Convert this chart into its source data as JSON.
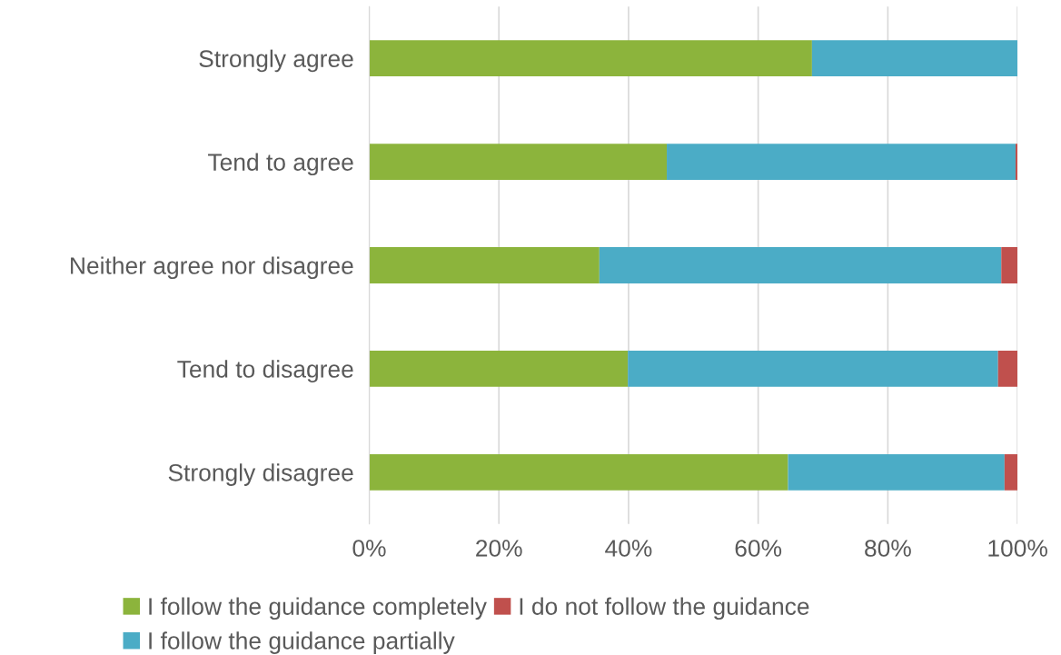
{
  "chart_data": {
    "type": "bar",
    "orientation": "horizontal",
    "stacked": true,
    "categories": [
      "Strongly agree",
      "Tend to agree",
      "Neither agree nor disagree",
      "Tend to disagree",
      "Strongly disagree"
    ],
    "series": [
      {
        "name": "I follow the guidance completely",
        "color": "#8cb43c",
        "values": [
          68.3,
          45.9,
          35.5,
          39.9,
          64.6
        ]
      },
      {
        "name": "I follow the guidance partially",
        "color": "#4bacc6",
        "values": [
          31.7,
          53.8,
          62.0,
          57.1,
          33.4
        ]
      },
      {
        "name": "I do not follow the guidance",
        "color": "#c0504d",
        "values": [
          0,
          0.3,
          2.5,
          3.0,
          2.0
        ]
      }
    ],
    "xlim": [
      0,
      100
    ],
    "xticks": [
      {
        "value": 0,
        "label": "0%"
      },
      {
        "value": 20,
        "label": "20%"
      },
      {
        "value": 40,
        "label": "40%"
      },
      {
        "value": 60,
        "label": "60%"
      },
      {
        "value": 80,
        "label": "80%"
      },
      {
        "value": 100,
        "label": "100%"
      }
    ],
    "grid": "x",
    "legend": "bottom"
  }
}
